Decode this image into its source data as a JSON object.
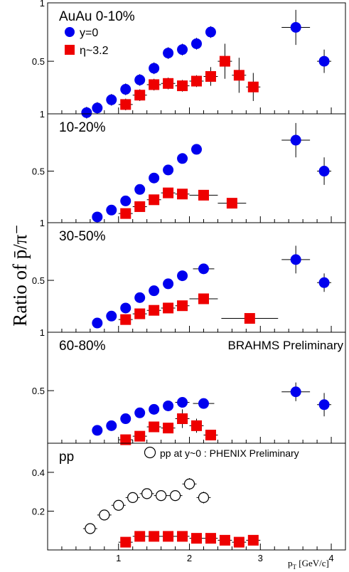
{
  "figure": {
    "y_axis_label": "Ratio of p̄/π⁻",
    "x_axis_label": "p",
    "x_axis_label_sub": "T",
    "x_axis_unit": " [GeV/c]",
    "x_ticks": [
      "1",
      "2",
      "3",
      "4"
    ]
  },
  "colors": {
    "y0": "#0000ee",
    "eta": "#ee0000",
    "pp": "#000000"
  },
  "chart_data": [
    {
      "type": "scatter",
      "panel_label": "AuAu 0-10%",
      "xlim": [
        0,
        4.2
      ],
      "ylim": [
        0.05,
        1.0
      ],
      "y_ticks": [
        {
          "v": 0.5,
          "label": "0.5"
        },
        {
          "v": 1.0,
          "label": "1"
        }
      ],
      "legend": [
        {
          "name": "y=0",
          "marker": "circle"
        },
        {
          "name": "η~3.2",
          "marker": "square"
        }
      ],
      "series": [
        {
          "name": "y=0",
          "marker": "circle",
          "color_key": "y0",
          "points": [
            [
              0.55,
              0.06,
              0.05
            ],
            [
              0.7,
              0.1,
              0.05
            ],
            [
              0.9,
              0.17,
              0.05
            ],
            [
              1.1,
              0.26,
              0.05
            ],
            [
              1.3,
              0.34,
              0.05
            ],
            [
              1.5,
              0.44,
              0.05
            ],
            [
              1.7,
              0.57,
              0.05
            ],
            [
              1.9,
              0.6,
              0.05
            ],
            [
              2.1,
              0.65,
              0.05
            ],
            [
              2.3,
              0.75,
              0.05
            ],
            [
              3.5,
              0.79,
              0.15
            ],
            [
              3.9,
              0.5,
              0.1
            ]
          ],
          "xerr": [
            0,
            0,
            0,
            0,
            0,
            0,
            0,
            0,
            0,
            0,
            0.2,
            0.1
          ]
        },
        {
          "name": "η~3.2",
          "marker": "square",
          "color_key": "eta",
          "points": [
            [
              1.1,
              0.13,
              0.05
            ],
            [
              1.3,
              0.21,
              0.05
            ],
            [
              1.5,
              0.3,
              0.05
            ],
            [
              1.7,
              0.31,
              0.05
            ],
            [
              1.9,
              0.29,
              0.05
            ],
            [
              2.1,
              0.33,
              0.05
            ],
            [
              2.3,
              0.37,
              0.08
            ],
            [
              2.5,
              0.5,
              0.15
            ],
            [
              2.7,
              0.38,
              0.15
            ],
            [
              2.9,
              0.28,
              0.12
            ]
          ],
          "xerr": [
            0.1,
            0.1,
            0.1,
            0.1,
            0.1,
            0.1,
            0.1,
            0.1,
            0.1,
            0.1
          ]
        }
      ]
    },
    {
      "type": "scatter",
      "panel_label": "10-20%",
      "xlim": [
        0,
        4.2
      ],
      "ylim": [
        0.05,
        1.0
      ],
      "y_ticks": [
        {
          "v": 0.5,
          "label": "0.5"
        },
        {
          "v": 1.0,
          "label": "1"
        }
      ],
      "series": [
        {
          "name": "y=0",
          "marker": "circle",
          "color_key": "y0",
          "points": [
            [
              0.7,
              0.1,
              0.03
            ],
            [
              0.9,
              0.16,
              0.03
            ],
            [
              1.1,
              0.24,
              0.03
            ],
            [
              1.3,
              0.34,
              0.03
            ],
            [
              1.5,
              0.44,
              0.03
            ],
            [
              1.7,
              0.51,
              0.03
            ],
            [
              1.9,
              0.61,
              0.03
            ],
            [
              2.1,
              0.69,
              0.03
            ],
            [
              3.5,
              0.77,
              0.15
            ],
            [
              3.9,
              0.5,
              0.12
            ]
          ],
          "xerr": [
            0,
            0,
            0,
            0,
            0,
            0,
            0,
            0,
            0.2,
            0.1
          ]
        },
        {
          "name": "η~3.2",
          "marker": "square",
          "color_key": "eta",
          "points": [
            [
              1.1,
              0.13,
              0.03
            ],
            [
              1.3,
              0.19,
              0.03
            ],
            [
              1.5,
              0.25,
              0.03
            ],
            [
              1.7,
              0.31,
              0.03
            ],
            [
              1.9,
              0.3,
              0.03
            ],
            [
              2.2,
              0.29,
              0.03
            ],
            [
              2.6,
              0.22,
              0.04
            ]
          ],
          "xerr": [
            0.1,
            0.1,
            0.1,
            0.1,
            0.1,
            0.2,
            0.2
          ]
        }
      ]
    },
    {
      "type": "scatter",
      "panel_label": "30-50%",
      "xlim": [
        0,
        4.2
      ],
      "ylim": [
        0.05,
        1.0
      ],
      "y_ticks": [
        {
          "v": 0.5,
          "label": "0.5"
        },
        {
          "v": 1.0,
          "label": "1"
        }
      ],
      "series": [
        {
          "name": "y=0",
          "marker": "circle",
          "color_key": "y0",
          "points": [
            [
              0.7,
              0.13,
              0.03
            ],
            [
              0.9,
              0.19,
              0.03
            ],
            [
              1.1,
              0.26,
              0.03
            ],
            [
              1.3,
              0.35,
              0.03
            ],
            [
              1.5,
              0.41,
              0.03
            ],
            [
              1.7,
              0.47,
              0.03
            ],
            [
              1.9,
              0.54,
              0.03
            ],
            [
              2.2,
              0.6,
              0.03
            ],
            [
              3.5,
              0.68,
              0.12
            ],
            [
              3.9,
              0.48,
              0.08
            ]
          ],
          "xerr": [
            0,
            0,
            0,
            0,
            0,
            0,
            0,
            0.15,
            0.2,
            0.1
          ]
        },
        {
          "name": "η~3.2",
          "marker": "square",
          "color_key": "eta",
          "points": [
            [
              1.1,
              0.16,
              0.03
            ],
            [
              1.3,
              0.21,
              0.03
            ],
            [
              1.5,
              0.24,
              0.03
            ],
            [
              1.7,
              0.26,
              0.03
            ],
            [
              1.9,
              0.28,
              0.03
            ],
            [
              2.2,
              0.34,
              0.03
            ],
            [
              2.85,
              0.17,
              0.02
            ]
          ],
          "xerr": [
            0.1,
            0.1,
            0.1,
            0.1,
            0.1,
            0.2,
            0.4
          ]
        }
      ]
    },
    {
      "type": "scatter",
      "panel_label": "60-80%",
      "annotation": "BRAHMS Preliminary",
      "xlim": [
        0,
        4.2
      ],
      "ylim": [
        0.05,
        1.0
      ],
      "y_ticks": [
        {
          "v": 0.5,
          "label": "0.5"
        },
        {
          "v": 1.0,
          "label": "1"
        }
      ],
      "series": [
        {
          "name": "y=0",
          "marker": "circle",
          "color_key": "y0",
          "points": [
            [
              0.7,
              0.16,
              0.03
            ],
            [
              0.9,
              0.2,
              0.03
            ],
            [
              1.1,
              0.26,
              0.03
            ],
            [
              1.3,
              0.31,
              0.03
            ],
            [
              1.5,
              0.34,
              0.03
            ],
            [
              1.7,
              0.37,
              0.03
            ],
            [
              1.9,
              0.4,
              0.03
            ],
            [
              2.2,
              0.39,
              0.03
            ],
            [
              3.5,
              0.49,
              0.08
            ],
            [
              3.9,
              0.38,
              0.1
            ]
          ],
          "xerr": [
            0,
            0,
            0,
            0,
            0,
            0,
            0.1,
            0.15,
            0.2,
            0.1
          ]
        },
        {
          "name": "η~3.2",
          "marker": "square",
          "color_key": "eta",
          "points": [
            [
              1.1,
              0.08,
              0.02
            ],
            [
              1.3,
              0.11,
              0.02
            ],
            [
              1.5,
              0.19,
              0.03
            ],
            [
              1.7,
              0.18,
              0.03
            ],
            [
              1.9,
              0.26,
              0.08
            ],
            [
              2.1,
              0.2,
              0.06
            ],
            [
              2.3,
              0.12,
              0.03
            ]
          ],
          "xerr": [
            0.1,
            0.1,
            0.1,
            0.1,
            0.1,
            0.1,
            0.1
          ]
        }
      ]
    },
    {
      "type": "scatter",
      "panel_label": "pp",
      "xlim": [
        0,
        4.2
      ],
      "ylim": [
        0.0,
        0.55
      ],
      "y_ticks": [
        {
          "v": 0.2,
          "label": "0.2"
        },
        {
          "v": 0.4,
          "label": "0.4"
        }
      ],
      "legend": [
        {
          "name": "pp at y~0 : PHENIX Preliminary",
          "marker": "open-circle"
        }
      ],
      "series": [
        {
          "name": "pp at y~0 : PHENIX Preliminary",
          "marker": "open-circle",
          "color_key": "pp",
          "points": [
            [
              0.6,
              0.11,
              0.01
            ],
            [
              0.8,
              0.18,
              0.02
            ],
            [
              1.0,
              0.23,
              0.02
            ],
            [
              1.2,
              0.27,
              0.02
            ],
            [
              1.4,
              0.29,
              0.02
            ],
            [
              1.6,
              0.28,
              0.02
            ],
            [
              1.8,
              0.28,
              0.02
            ],
            [
              2.0,
              0.34,
              0.03
            ],
            [
              2.2,
              0.27,
              0.03
            ]
          ],
          "xerr": [
            0.1,
            0.1,
            0.1,
            0.1,
            0.1,
            0.1,
            0.1,
            0.1,
            0.1
          ]
        },
        {
          "name": "η~3.2",
          "marker": "square",
          "color_key": "eta",
          "points": [
            [
              1.1,
              0.04,
              0.01
            ],
            [
              1.3,
              0.07,
              0.01
            ],
            [
              1.5,
              0.07,
              0.01
            ],
            [
              1.7,
              0.07,
              0.01
            ],
            [
              1.9,
              0.07,
              0.01
            ],
            [
              2.1,
              0.06,
              0.01
            ],
            [
              2.3,
              0.06,
              0.01
            ],
            [
              2.5,
              0.05,
              0.01
            ],
            [
              2.7,
              0.04,
              0.01
            ],
            [
              2.9,
              0.05,
              0.01
            ]
          ],
          "xerr": [
            0.1,
            0.1,
            0.1,
            0.1,
            0.1,
            0.1,
            0.1,
            0.1,
            0.1,
            0.1
          ]
        }
      ]
    }
  ]
}
